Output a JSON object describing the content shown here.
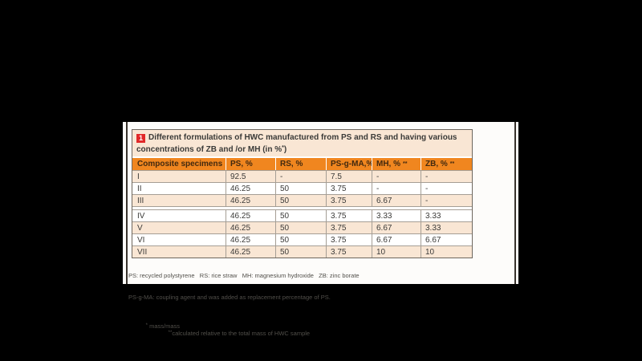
{
  "figure": {
    "number_badge": "1",
    "title_line1": "Different formulations of HWC manufactured from PS and RS and having various",
    "title_line2_pre": "concentrations of ZB and /or MH (in %",
    "title_line2_sup": "*",
    "title_line2_post": ")"
  },
  "table": {
    "headers": [
      {
        "label": "Composite specimens",
        "sup": ""
      },
      {
        "label": "PS, %",
        "sup": ""
      },
      {
        "label": "RS, %",
        "sup": ""
      },
      {
        "label": "PS-g-MA,%",
        "sup": ""
      },
      {
        "label": "MH, %",
        "sup": "**"
      },
      {
        "label": "ZB, %",
        "sup": "**"
      }
    ],
    "sections": [
      {
        "rows": [
          [
            "I",
            "92.5",
            "-",
            "7.5",
            "-",
            "-"
          ],
          [
            "II",
            "46.25",
            "50",
            "3.75",
            "-",
            "-"
          ],
          [
            "III",
            "46.25",
            "50",
            "3.75",
            "6.67",
            "-"
          ]
        ]
      },
      {
        "rows": [
          [
            "IV",
            "46.25",
            "50",
            "3.75",
            "3.33",
            "3.33"
          ],
          [
            "V",
            "46.25",
            "50",
            "3.75",
            "6.67",
            "3.33"
          ],
          [
            "VI",
            "46.25",
            "50",
            "3.75",
            "6.67",
            "6.67"
          ],
          [
            "VII",
            "46.25",
            "50",
            "3.75",
            "10",
            "10"
          ]
        ]
      }
    ]
  },
  "footnotes": {
    "line1": "PS: recycled polystyrene   RS: rice straw   MH: magnesium hydroxide   ZB: zinc borate",
    "line2": "PS-g-MA: coupling agent and was added as replacement percentage of PS.",
    "line3_sup1": "*",
    "line3_text1": " mass/mass",
    "line3_sup2": "**",
    "line3_text2": "calculated relative to the total mass of HWC sample"
  },
  "colors": {
    "background": "#000000",
    "panel": "#fdfcfa",
    "header_orange": "#f0861f",
    "row_cream": "#f9e6d4",
    "badge_red": "#e12829",
    "border_grey": "#a59e95",
    "outer_border": "#6e675e",
    "text": "#3b3a38"
  }
}
